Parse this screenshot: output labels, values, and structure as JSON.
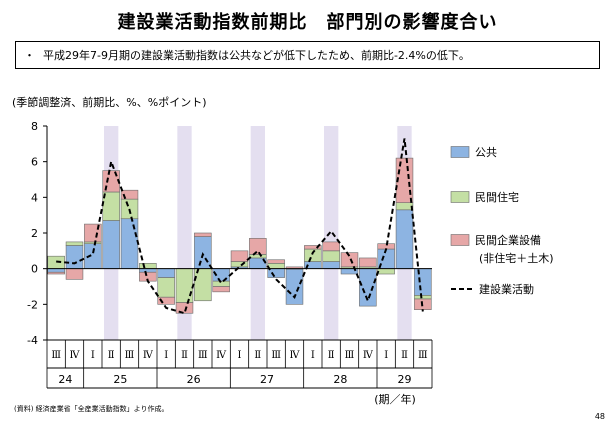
{
  "title": "建設業活動指数前期比　部門別の影響度合い",
  "summary": "平成29年7-9月期の建設業活動指数は公共などが低下したため、前期比-2.4%の低下。",
  "bullet": "・",
  "unit_note": "(季節調整済、前期比、%、%ポイント)",
  "source": "(資料) 経済産業省「全産業活動指数」より作成。",
  "page_number": "48",
  "colors": {
    "public": "#8db4e2",
    "housing": "#c4dfa4",
    "private": "#e6a7a7",
    "shade": "#e4dff0",
    "line": "#000000"
  },
  "chart_data": {
    "type": "bar",
    "stacked": true,
    "ylim": [
      -4,
      8
    ],
    "yticks": [
      "8",
      "6",
      "4",
      "2",
      "0",
      "-2",
      "-4"
    ],
    "ytick_values": [
      8,
      6,
      4,
      2,
      0,
      -2,
      -4
    ],
    "quarters": [
      "Ⅲ",
      "Ⅳ",
      "Ⅰ",
      "Ⅱ",
      "Ⅲ",
      "Ⅳ",
      "Ⅰ",
      "Ⅱ",
      "Ⅲ",
      "Ⅳ",
      "Ⅰ",
      "Ⅱ",
      "Ⅲ",
      "Ⅳ",
      "Ⅰ",
      "Ⅱ",
      "Ⅲ",
      "Ⅳ",
      "Ⅰ",
      "Ⅱ",
      "Ⅲ"
    ],
    "years": [
      {
        "label": "24",
        "span": 2
      },
      {
        "label": "25",
        "span": 4
      },
      {
        "label": "26",
        "span": 4
      },
      {
        "label": "27",
        "span": 4
      },
      {
        "label": "28",
        "span": 4
      },
      {
        "label": "29",
        "span": 3
      }
    ],
    "axis_suffix": "(期／年)",
    "series": [
      {
        "name": "公共",
        "key": "public",
        "values": [
          -0.2,
          1.3,
          1.4,
          2.7,
          2.8,
          -0.2,
          -0.5,
          0.0,
          1.8,
          -0.7,
          0.1,
          0.6,
          -0.5,
          -2.0,
          0.4,
          0.4,
          -0.3,
          -2.1,
          1.1,
          3.3,
          -1.5
        ]
      },
      {
        "name": "民間住宅",
        "key": "housing",
        "values": [
          0.7,
          0.2,
          0.1,
          1.6,
          1.1,
          0.3,
          -1.1,
          -1.9,
          -1.8,
          -0.3,
          0.3,
          0.2,
          0.3,
          0.0,
          0.7,
          0.6,
          0.1,
          0.1,
          -0.3,
          0.4,
          -0.2
        ]
      },
      {
        "name": "民間企業設備",
        "sub": "(非住宅＋土木)",
        "key": "private",
        "values": [
          -0.1,
          -0.6,
          1.0,
          1.2,
          0.5,
          -0.5,
          -0.4,
          -0.6,
          0.2,
          -0.3,
          0.6,
          0.9,
          0.2,
          0.1,
          0.2,
          0.5,
          0.8,
          0.5,
          0.3,
          2.5,
          -0.6
        ]
      }
    ],
    "line": {
      "name": "建設業活動",
      "key": "line",
      "values": [
        0.4,
        0.3,
        0.8,
        6.0,
        3.3,
        -0.7,
        -2.2,
        -2.5,
        0.8,
        -0.8,
        0.1,
        1.0,
        -0.6,
        -1.6,
        0.9,
        2.1,
        0.7,
        -1.8,
        1.1,
        7.3,
        -2.4
      ]
    }
  }
}
